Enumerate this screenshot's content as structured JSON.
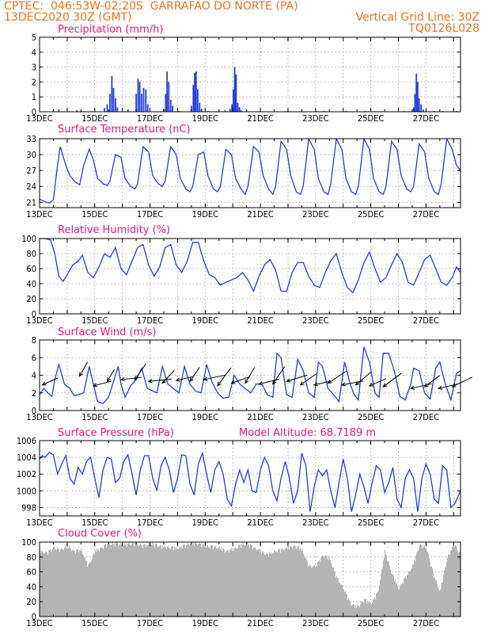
{
  "header": {
    "line1_left": "CPTEC:  046:53W-02:20S  GARRAFAO DO NORTE (PA)",
    "line2_left": "13DEC2020 30Z (GMT)",
    "line2_right": "Vertical Grid Line: 30Z",
    "line3_right": "TQ0126L028"
  },
  "colors": {
    "header": "#e8731a",
    "title": "#e0187c",
    "line": "#1f3fe0",
    "cloud": "#b4b4b4"
  },
  "x_tick_labels": [
    "13DEC",
    "15DEC",
    "17DEC",
    "19DEC",
    "21DEC",
    "23DEC",
    "25DEC",
    "27DEC"
  ],
  "chart_data": [
    {
      "type": "bar",
      "title": "Precipitation (mm/h)",
      "ylim": [
        0,
        5
      ],
      "yticks": [
        "0",
        "1",
        "2",
        "3",
        "4",
        "5"
      ],
      "x_unit": "days since 13DEC 00Z",
      "x_range": [
        0,
        15.25
      ],
      "grid": true,
      "bars": [
        [
          0.7,
          0.15
        ],
        [
          1.35,
          0.1
        ],
        [
          1.5,
          0.05
        ],
        [
          2.35,
          0.25
        ],
        [
          2.45,
          0.5
        ],
        [
          2.55,
          1.2
        ],
        [
          2.62,
          2.4
        ],
        [
          2.68,
          1.6
        ],
        [
          2.75,
          0.9
        ],
        [
          2.82,
          0.3
        ],
        [
          3.2,
          0.15
        ],
        [
          3.5,
          1.2
        ],
        [
          3.57,
          2.2
        ],
        [
          3.63,
          2.0
        ],
        [
          3.7,
          1.2
        ],
        [
          3.77,
          1.6
        ],
        [
          3.85,
          1.5
        ],
        [
          3.92,
          0.5
        ],
        [
          4.5,
          0.2
        ],
        [
          4.57,
          1.2
        ],
        [
          4.62,
          2.7
        ],
        [
          4.68,
          2.0
        ],
        [
          4.75,
          0.8
        ],
        [
          4.82,
          0.4
        ],
        [
          5.05,
          0.05
        ],
        [
          5.5,
          0.4
        ],
        [
          5.57,
          1.8
        ],
        [
          5.62,
          2.6
        ],
        [
          5.67,
          2.7
        ],
        [
          5.73,
          1.5
        ],
        [
          5.8,
          0.6
        ],
        [
          5.87,
          0.2
        ],
        [
          6.1,
          0.05
        ],
        [
          6.5,
          0.05
        ],
        [
          6.72,
          0.1
        ],
        [
          6.9,
          0.2
        ],
        [
          6.97,
          0.5
        ],
        [
          7.02,
          1.5
        ],
        [
          7.07,
          3.0
        ],
        [
          7.12,
          2.5
        ],
        [
          7.18,
          0.6
        ],
        [
          7.24,
          0.3
        ],
        [
          7.3,
          0.1
        ],
        [
          8.0,
          0.05
        ],
        [
          9.0,
          0.05
        ],
        [
          10.05,
          0.05
        ],
        [
          10.3,
          0.05
        ],
        [
          11.1,
          0.05
        ],
        [
          11.8,
          0.04
        ],
        [
          12.4,
          0.04
        ],
        [
          13.2,
          0.05
        ],
        [
          13.55,
          0.3
        ],
        [
          13.6,
          1.2
        ],
        [
          13.65,
          2.55
        ],
        [
          13.7,
          2.0
        ],
        [
          13.75,
          0.9
        ],
        [
          13.82,
          0.5
        ],
        [
          13.9,
          0.15
        ],
        [
          14.3,
          0.05
        ],
        [
          14.6,
          0.05
        ],
        [
          15.1,
          0.05
        ]
      ]
    },
    {
      "type": "line",
      "title": "Surface Temperature (nC)",
      "ylim": [
        20,
        33
      ],
      "yticks": [
        "21",
        "24",
        "27",
        "30",
        "33"
      ],
      "ytick_values": [
        21,
        24,
        27,
        30,
        33
      ],
      "x_unit": "days since 13DEC 00Z",
      "x_range": [
        0,
        15.25
      ],
      "grid": true,
      "x": [
        0,
        0.25,
        0.37,
        0.5,
        0.65,
        0.75,
        0.95,
        1.1,
        1.3,
        1.45,
        1.6,
        1.8,
        1.95,
        2.1,
        2.3,
        2.45,
        2.55,
        2.75,
        2.95,
        3.1,
        3.3,
        3.45,
        3.55,
        3.75,
        3.95,
        4.1,
        4.3,
        4.45,
        4.55,
        4.75,
        4.95,
        5.1,
        5.3,
        5.45,
        5.55,
        5.75,
        5.95,
        6.1,
        6.3,
        6.45,
        6.55,
        6.75,
        6.95,
        7.1,
        7.3,
        7.45,
        7.55,
        7.75,
        7.95,
        8.1,
        8.3,
        8.45,
        8.55,
        8.75,
        8.95,
        9.1,
        9.3,
        9.45,
        9.55,
        9.75,
        9.95,
        10.1,
        10.3,
        10.45,
        10.55,
        10.75,
        10.95,
        11.1,
        11.3,
        11.45,
        11.55,
        11.75,
        11.95,
        12.1,
        12.3,
        12.45,
        12.55,
        12.75,
        12.95,
        13.1,
        13.3,
        13.45,
        13.55,
        13.75,
        13.95,
        14.1,
        14.3,
        14.45,
        14.55,
        14.75,
        14.95,
        15.1,
        15.25
      ],
      "values": [
        21.6,
        21.0,
        20.9,
        21.5,
        28.0,
        31.5,
        28.0,
        26.0,
        24.8,
        24.3,
        28.0,
        31.0,
        29.0,
        25.5,
        24.5,
        24.2,
        25.0,
        30.0,
        29.5,
        25.5,
        24.0,
        23.5,
        24.5,
        31.5,
        30.5,
        26.0,
        24.5,
        24.0,
        25.0,
        31.5,
        30.0,
        25.5,
        23.5,
        23.0,
        24.0,
        30.0,
        30.5,
        26.0,
        23.5,
        23.0,
        24.0,
        31.0,
        30.0,
        25.5,
        23.5,
        22.5,
        24.0,
        31.5,
        30.5,
        26.0,
        23.5,
        22.5,
        24.0,
        32.5,
        31.0,
        26.0,
        23.0,
        22.5,
        24.0,
        33.0,
        31.0,
        25.5,
        23.0,
        22.5,
        24.5,
        33.0,
        31.0,
        25.5,
        23.0,
        22.5,
        24.0,
        33.0,
        31.0,
        25.5,
        23.0,
        22.5,
        24.0,
        32.5,
        31.0,
        26.0,
        23.5,
        23.0,
        24.0,
        32.0,
        30.5,
        25.5,
        23.0,
        22.5,
        24.5,
        33.0,
        31.0,
        28.0,
        27.0
      ]
    },
    {
      "type": "line",
      "title": "Relative Humidity (%)",
      "ylim": [
        0,
        100
      ],
      "yticks": [
        "0",
        "20",
        "40",
        "60",
        "80",
        "100"
      ],
      "ytick_values": [
        0,
        20,
        40,
        60,
        80,
        100
      ],
      "x_unit": "days since 13DEC 00Z",
      "x_range": [
        0,
        15.25
      ],
      "grid": true,
      "x": [
        0,
        0.2,
        0.4,
        0.55,
        0.7,
        0.85,
        1.05,
        1.2,
        1.4,
        1.55,
        1.75,
        1.95,
        2.15,
        2.35,
        2.55,
        2.75,
        2.95,
        3.15,
        3.35,
        3.55,
        3.75,
        3.95,
        4.15,
        4.35,
        4.55,
        4.75,
        4.95,
        5.15,
        5.35,
        5.55,
        5.75,
        5.95,
        6.15,
        6.35,
        6.55,
        6.75,
        6.95,
        7.15,
        7.35,
        7.55,
        7.75,
        7.95,
        8.15,
        8.35,
        8.55,
        8.75,
        8.95,
        9.15,
        9.35,
        9.55,
        9.75,
        9.95,
        10.15,
        10.35,
        10.55,
        10.75,
        10.95,
        11.15,
        11.35,
        11.55,
        11.75,
        11.95,
        12.15,
        12.35,
        12.55,
        12.75,
        12.95,
        13.15,
        13.35,
        13.55,
        13.75,
        13.95,
        14.15,
        14.35,
        14.55,
        14.75,
        14.95,
        15.1,
        15.25
      ],
      "values": [
        100,
        100,
        98,
        80,
        50,
        43,
        55,
        65,
        70,
        78,
        55,
        48,
        62,
        80,
        75,
        88,
        60,
        52,
        70,
        88,
        92,
        65,
        50,
        62,
        88,
        92,
        65,
        55,
        70,
        95,
        95,
        70,
        52,
        48,
        38,
        42,
        45,
        48,
        55,
        45,
        30,
        50,
        65,
        72,
        58,
        30,
        30,
        55,
        68,
        68,
        50,
        38,
        35,
        55,
        70,
        80,
        55,
        35,
        28,
        45,
        68,
        82,
        60,
        42,
        48,
        65,
        80,
        68,
        42,
        38,
        55,
        72,
        78,
        60,
        42,
        38,
        48,
        62,
        55
      ]
    },
    {
      "type": "line",
      "title": "Surface Wind (m/s)",
      "ylim": [
        0,
        8
      ],
      "yticks": [
        "0",
        "2",
        "4",
        "6",
        "8"
      ],
      "ytick_values": [
        0,
        2,
        4,
        6,
        8
      ],
      "x_unit": "days since 13DEC 00Z",
      "x_range": [
        0,
        15.25
      ],
      "grid": true,
      "x": [
        0,
        0.15,
        0.3,
        0.45,
        0.55,
        0.7,
        0.9,
        1.1,
        1.25,
        1.4,
        1.6,
        1.8,
        1.95,
        2.1,
        2.3,
        2.5,
        2.7,
        2.85,
        2.95,
        3.1,
        3.3,
        3.5,
        3.7,
        3.9,
        4.05,
        4.25,
        4.45,
        4.65,
        4.85,
        5.05,
        5.25,
        5.45,
        5.65,
        5.85,
        6.05,
        6.25,
        6.45,
        6.65,
        6.85,
        7.05,
        7.25,
        7.45,
        7.65,
        7.85,
        8.05,
        8.25,
        8.45,
        8.6,
        8.75,
        8.95,
        9.15,
        9.35,
        9.55,
        9.75,
        9.95,
        10.1,
        10.25,
        10.45,
        10.65,
        10.85,
        11.05,
        11.25,
        11.4,
        11.55,
        11.75,
        11.95,
        12.15,
        12.3,
        12.45,
        12.65,
        12.85,
        13.05,
        13.25,
        13.45,
        13.55,
        13.75,
        13.95,
        14.15,
        14.35,
        14.5,
        14.7,
        14.9,
        15.1,
        15.25
      ],
      "values": [
        1.8,
        2.5,
        2.0,
        1.6,
        3.5,
        5.2,
        3.0,
        2.5,
        1.7,
        1.8,
        2.0,
        5.0,
        3.0,
        1.0,
        0.8,
        1.5,
        3.5,
        5.0,
        3.0,
        1.5,
        2.8,
        3.5,
        4.8,
        2.5,
        2.3,
        2.0,
        5.0,
        3.0,
        2.5,
        2.0,
        5.0,
        3.0,
        2.2,
        2.0,
        5.2,
        3.2,
        2.0,
        1.4,
        1.5,
        4.0,
        3.0,
        2.5,
        2.0,
        3.0,
        3.0,
        1.8,
        1.5,
        6.5,
        6.0,
        1.8,
        1.5,
        5.8,
        4.5,
        2.0,
        1.5,
        5.5,
        5.0,
        2.5,
        1.8,
        1.0,
        5.5,
        3.0,
        1.8,
        1.2,
        7.2,
        5.5,
        2.0,
        1.5,
        6.5,
        6.5,
        4.5,
        1.6,
        1.2,
        3.0,
        4.8,
        4.5,
        2.0,
        1.3,
        4.8,
        5.5,
        3.0,
        1.2,
        4.2,
        4.5
      ],
      "vectors_x": [
        0.1,
        1.45,
        1.95,
        2.45,
        2.95,
        3.45,
        3.95,
        4.45,
        4.95,
        5.45,
        5.95,
        6.45,
        6.95,
        7.45,
        7.95,
        8.45,
        8.95,
        9.45,
        9.95,
        10.45,
        10.95,
        11.45,
        11.95,
        12.45,
        13.45,
        13.95,
        14.45,
        14.95
      ],
      "vectors_y": [
        2.9,
        3.9,
        2.8,
        3.3,
        3.5,
        3.5,
        3.3,
        3.1,
        3.4,
        3.3,
        3.5,
        2.8,
        3.1,
        3.1,
        3.0,
        3.0,
        3.3,
        2.9,
        2.9,
        3.1,
        2.9,
        2.9,
        2.8,
        2.7,
        2.5,
        2.7,
        2.5,
        2.7
      ],
      "vectors_u": [
        2.0,
        1.0,
        2.3,
        0.9,
        2.6,
        1.4,
        2.9,
        1.5,
        2.1,
        1.2,
        2.8,
        1.7,
        2.3,
        1.2,
        2.5,
        1.5,
        2.6,
        2.0,
        2.1,
        2.3,
        2.7,
        1.9,
        2.1,
        2.3,
        2.7,
        1.9,
        2.6,
        2.5
      ],
      "vectors_v": [
        0.9,
        1.8,
        0.6,
        1.5,
        0.3,
        2.0,
        0.3,
        1.6,
        0.5,
        1.8,
        0.6,
        2.3,
        0.8,
        2.0,
        0.6,
        2.2,
        0.8,
        1.4,
        0.5,
        1.5,
        0.5,
        1.6,
        0.9,
        1.7,
        0.6,
        1.4,
        0.6,
        1.2
      ]
    },
    {
      "type": "line",
      "title": "Surface Pressure (hPa)",
      "annotation": "Model Altitude: 68.7189 m",
      "ylim": [
        997,
        1006
      ],
      "yticks": [
        "998",
        "1000",
        "1002",
        "1004",
        "1006"
      ],
      "ytick_values": [
        998,
        1000,
        1002,
        1004,
        1006
      ],
      "x_unit": "days since 13DEC 00Z",
      "x_range": [
        0,
        15.25
      ],
      "grid": true,
      "x": [
        0,
        0.1,
        0.2,
        0.35,
        0.5,
        0.65,
        0.8,
        0.95,
        1.1,
        1.25,
        1.4,
        1.55,
        1.7,
        1.85,
        2.0,
        2.15,
        2.3,
        2.45,
        2.6,
        2.75,
        2.9,
        3.05,
        3.2,
        3.35,
        3.5,
        3.65,
        3.8,
        3.95,
        4.1,
        4.25,
        4.4,
        4.55,
        4.7,
        4.85,
        5.0,
        5.15,
        5.3,
        5.45,
        5.6,
        5.75,
        5.9,
        6.05,
        6.2,
        6.35,
        6.5,
        6.65,
        6.8,
        6.95,
        7.1,
        7.25,
        7.4,
        7.55,
        7.7,
        7.85,
        8.0,
        8.15,
        8.3,
        8.45,
        8.6,
        8.75,
        8.9,
        9.05,
        9.2,
        9.35,
        9.5,
        9.65,
        9.8,
        9.95,
        10.1,
        10.25,
        10.4,
        10.55,
        10.7,
        10.85,
        11.0,
        11.15,
        11.3,
        11.45,
        11.6,
        11.75,
        11.9,
        12.05,
        12.2,
        12.35,
        12.5,
        12.65,
        12.8,
        12.95,
        13.1,
        13.25,
        13.4,
        13.55,
        13.7,
        13.85,
        14.0,
        14.15,
        14.3,
        14.45,
        14.6,
        14.75,
        14.9,
        15.05,
        15.25
      ],
      "values": [
        1003.8,
        1004.2,
        1004.0,
        1004.6,
        1004.3,
        1002.0,
        1003.2,
        1004.2,
        1001.5,
        1000.8,
        1002.8,
        1002.0,
        1003.5,
        1004.0,
        1001.5,
        999.2,
        1002.5,
        1004.0,
        1003.8,
        1001.0,
        1001.5,
        1003.5,
        1004.3,
        1002.0,
        999.5,
        1002.5,
        1004.2,
        1004.2,
        1001.5,
        1000.0,
        1003.0,
        1004.0,
        1002.5,
        999.8,
        1001.5,
        1004.3,
        1004.2,
        1000.8,
        999.5,
        1003.2,
        1004.5,
        1002.0,
        999.8,
        1002.5,
        1003.5,
        1002.0,
        999.0,
        998.2,
        1000.8,
        1002.5,
        1001.0,
        1002.5,
        1000.0,
        999.8,
        1002.5,
        1004.0,
        1003.0,
        1000.0,
        998.8,
        1001.5,
        1003.5,
        1001.5,
        998.5,
        1000.0,
        1004.5,
        1003.0,
        997.5,
        1000.5,
        1002.5,
        1001.8,
        1002.5,
        1000.0,
        998.0,
        1001.0,
        1003.8,
        1001.5,
        997.5,
        999.5,
        1002.0,
        1000.5,
        998.5,
        1001.0,
        1003.0,
        1002.5,
        999.8,
        1001.0,
        1002.8,
        999.0,
        998.0,
        1001.5,
        1002.5,
        1001.5,
        997.5,
        1001.5,
        1003.2,
        1002.0,
        999.0,
        998.5,
        1003.0,
        1002.5,
        998.0,
        998.5,
        1000.0
      ]
    },
    {
      "type": "bar",
      "title": "Cloud Cover (%)",
      "ylim": [
        0,
        100
      ],
      "yticks": [
        "0",
        "20",
        "40",
        "60",
        "80",
        "100"
      ],
      "ytick_values": [
        0,
        20,
        40,
        60,
        80,
        100
      ],
      "x_unit": "days since 13DEC 00Z",
      "x_range": [
        0,
        15.25
      ],
      "grid": true,
      "x": [
        0,
        0.25,
        0.5,
        0.75,
        1.0,
        1.25,
        1.5,
        1.75,
        2.0,
        2.25,
        2.5,
        2.75,
        3.0,
        3.25,
        3.5,
        3.75,
        4.0,
        4.25,
        4.5,
        4.75,
        5.0,
        5.25,
        5.5,
        5.75,
        6.0,
        6.25,
        6.5,
        6.75,
        7.0,
        7.25,
        7.5,
        7.75,
        8.0,
        8.25,
        8.5,
        8.75,
        9.0,
        9.25,
        9.5,
        9.75,
        10.0,
        10.25,
        10.5,
        10.75,
        11.0,
        11.25,
        11.5,
        11.75,
        12.0,
        12.25,
        12.5,
        12.75,
        13.0,
        13.25,
        13.5,
        13.75,
        14.0,
        14.25,
        14.5,
        14.75,
        15.0,
        15.25
      ],
      "values": [
        90,
        88,
        95,
        92,
        97,
        90,
        92,
        70,
        90,
        95,
        100,
        100,
        98,
        100,
        100,
        97,
        100,
        98,
        96,
        95,
        94,
        98,
        100,
        100,
        97,
        96,
        95,
        90,
        93,
        98,
        100,
        95,
        90,
        85,
        90,
        92,
        95,
        97,
        92,
        70,
        70,
        85,
        80,
        55,
        40,
        20,
        15,
        25,
        20,
        35,
        90,
        60,
        40,
        55,
        70,
        98,
        95,
        60,
        35,
        80,
        100,
        85
      ]
    }
  ]
}
